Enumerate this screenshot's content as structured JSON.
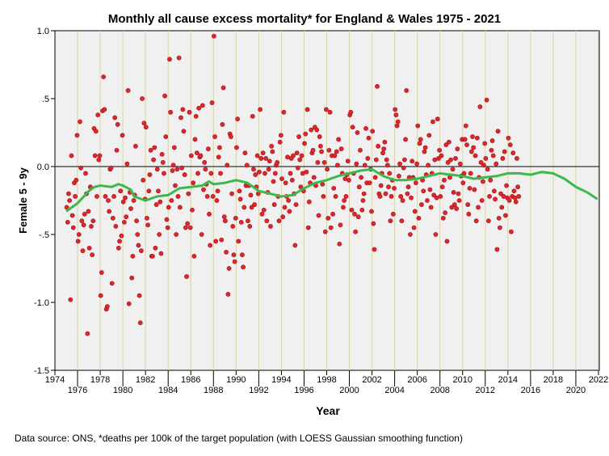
{
  "chart_data": {
    "type": "scatter",
    "title": "Monthly all cause excess mortality* for England & Wales 1975 - 2021",
    "xlabel": "Year",
    "ylabel": "Female 5 - 9y",
    "footnote": "Data source: ONS, *deaths per 100k of the target population (with LOESS Gaussian smoothing function)",
    "xlim": [
      1974,
      2022.2
    ],
    "ylim": [
      -1.5,
      1.0
    ],
    "x_ticks_top": [
      "1974",
      "1978",
      "1982",
      "1986",
      "1990",
      "1994",
      "1998",
      "2002",
      "2006",
      "2010",
      "2014",
      "2018",
      "2022"
    ],
    "x_ticks_bottom": [
      "1976",
      "1980",
      "1984",
      "1988",
      "1992",
      "1996",
      "2000",
      "2004",
      "2008",
      "2012",
      "2016",
      "2020"
    ],
    "y_ticks": [
      {
        "v": 1.0,
        "label": "1.0"
      },
      {
        "v": 0.5,
        "label": ".5"
      },
      {
        "v": 0,
        "label": "0.0"
      },
      {
        "v": -0.5,
        "label": "-.5"
      },
      {
        "v": -1.0,
        "label": "-1.0"
      },
      {
        "v": -1.5,
        "label": "-1.5"
      }
    ],
    "grid": "vertical every 2 years",
    "reference_line": 0,
    "colors": {
      "points": "#e0262b",
      "loess": "#3cb94a",
      "grid": "#dcd3a8",
      "plot_bg": "#f0f0f0"
    },
    "points_start_year": 1975,
    "points_monthly": [
      -0.3,
      -0.41,
      -0.2,
      -0.25,
      -0.98,
      0.08,
      -0.36,
      -0.45,
      -0.12,
      -0.22,
      -0.1,
      0.23,
      -0.55,
      -0.5,
      0.33,
      -0.01,
      -0.4,
      -0.62,
      -0.43,
      -0.35,
      -0.05,
      -0.2,
      -1.23,
      -0.33,
      -0.6,
      -0.15,
      -0.44,
      -0.65,
      -0.4,
      0.28,
      0.08,
      0.26,
      -0.22,
      0.38,
      0.05,
      0.08,
      -0.95,
      -0.78,
      0.41,
      0.66,
      0.42,
      -0.22,
      -1.05,
      -1.03,
      -0.25,
      -0.33,
      -0.02,
      -0.01,
      -0.86,
      -0.38,
      -0.22,
      0.36,
      -0.44,
      0.12,
      0.31,
      -0.6,
      -0.55,
      -0.18,
      -0.51,
      0.23,
      -0.26,
      -0.41,
      -0.23,
      -0.37,
      0.02,
      0.56,
      -1.01,
      -0.19,
      -0.31,
      -0.82,
      -0.66,
      -0.25,
      -0.21,
      0.15,
      -0.4,
      -0.5,
      -0.58,
      -0.95,
      -1.15,
      -0.62,
      0.5,
      -0.1,
      0.32,
      -0.24,
      0.29,
      -0.38,
      -0.43,
      -0.18,
      -0.06,
      0.12,
      -0.66,
      -0.66,
      0.05,
      0.14,
      -0.6,
      -0.28,
      -0.02,
      -0.18,
      -0.5,
      -0.26,
      -0.64,
      0.09,
      0.03,
      -0.05,
      0.52,
      0.22,
      -0.39,
      -0.45,
      -0.3,
      0.79,
      0.4,
      -0.25,
      -0.03,
      0.01,
      0.14,
      -0.14,
      -0.5,
      -0.02,
      -0.22,
      0.8,
      -0.3,
      0.36,
      -0.01,
      0.42,
      0.26,
      -0.06,
      -0.45,
      -0.81,
      -0.42,
      -0.2,
      0.4,
      -0.45,
      0.08,
      -0.32,
      -0.12,
      -0.66,
      0.2,
      0.37,
      0.1,
      -0.05,
      0.43,
      0.07,
      0.08,
      -0.5,
      0.45,
      -0.17,
      0.03,
      -0.02,
      -0.13,
      -0.22,
      0.13,
      -0.35,
      -0.58,
      -0.05,
      0.47,
      -0.22,
      0.96,
      0.22,
      -0.55,
      -0.25,
      -0.18,
      0.07,
      0.14,
      -0.05,
      -0.54,
      0.31,
      0.58,
      -0.37,
      -0.4,
      -0.63,
      0.01,
      -0.94,
      -0.75,
      0.24,
      0.22,
      -0.2,
      -0.44,
      -0.65,
      -0.7,
      -0.38,
      0.14,
      0.35,
      -0.55,
      -0.18,
      -0.24,
      -0.41,
      -0.65,
      -0.74,
      -0.3,
      0.1,
      -0.14,
      0.01,
      -0.4,
      -0.14,
      -0.44,
      -0.21,
      -0.3,
      0.37,
      -0.02,
      -0.28,
      -0.06,
      -0.15,
      0.08,
      -0.2,
      -0.04,
      0.42,
      0.06,
      -0.35,
      0.1,
      -0.32,
      -0.05,
      0.06,
      -0.4,
      -0.19,
      -0.02,
      0.04,
      -0.44,
      0.15,
      0.11,
      -0.11,
      -0.28,
      -0.05,
      0.01,
      0.03,
      -0.22,
      -0.4,
      0.18,
      0.23,
      -0.09,
      -0.37,
      0.4,
      -0.3,
      -0.12,
      -0.22,
      0.07,
      -0.25,
      -0.33,
      -0.05,
      0.06,
      -0.1,
      0.08,
      -0.2,
      -0.58,
      -0.28,
      0.1,
      -0.01,
      0.22,
      0.05,
      -0.15,
      0.08,
      -0.05,
      -0.18,
      0.17,
      0.24,
      -0.04,
      0.42,
      -0.45,
      -0.26,
      -0.12,
      0.27,
      0.1,
      0.12,
      -0.08,
      0.29,
      -0.14,
      0.27,
      0.03,
      -0.36,
      0.22,
      0.15,
      0.11,
      -0.13,
      -0.22,
      0.03,
      -0.48,
      0.42,
      -0.02,
      -0.38,
      0.12,
      0.4,
      -0.45,
      0.08,
      -0.35,
      -0.16,
      0.08,
      -0.22,
      0.11,
      0.01,
      0.2,
      -0.57,
      -0.43,
      0.13,
      -0.05,
      -0.3,
      -0.25,
      -0.09,
      -0.22,
      -0.06,
      0.04,
      -0.1,
      0.38,
      0.4,
      -0.32,
      0.29,
      -0.05,
      -0.35,
      -0.48,
      0.02,
      0.25,
      -0.37,
      -0.15,
      0.12,
      -0.08,
      -0.32,
      -0.25,
      -0.2,
      0.01,
      0.28,
      -0.12,
      0.06,
      0.21,
      -0.12,
      -0.02,
      -0.33,
      0.26,
      -0.42,
      -0.61,
      -0.08,
      0.05,
      0.59,
      0.15,
      -0.2,
      -0.22,
      -0.14,
      -0.05,
      0.1,
      0.13,
      0.18,
      -0.2,
      0.05,
      0.01,
      -0.15,
      -0.05,
      -0.4,
      -0.22,
      -0.1,
      -0.35,
      -0.16,
      0.42,
      0.38,
      0.3,
      0.33,
      -0.07,
      0.02,
      -0.22,
      -0.4,
      -0.25,
      -0.01,
      0.05,
      0.2,
      0.56,
      -0.2,
      -0.15,
      -0.08,
      -0.5,
      -0.23,
      0.04,
      -0.08,
      -0.45,
      -0.33,
      -0.12,
      0.02,
      0.3,
      -0.38,
      0.17,
      0.2,
      -0.28,
      -0.1,
      -0.18,
      0.11,
      0.14,
      -0.06,
      -0.25,
      0.01,
      0.23,
      -0.17,
      -0.3,
      -0.05,
      0.33,
      -0.21,
      0.05,
      -0.5,
      -0.23,
      0.35,
      0.06,
      0.12,
      -0.22,
      0.08,
      -0.15,
      -0.38,
      -0.1,
      -0.34,
      0.16,
      -0.55,
      0.03,
      0.18,
      -0.08,
      0.05,
      -0.3,
      -0.02,
      -0.19,
      -0.28,
      0.06,
      -0.31,
      0.13,
      -0.2,
      -0.25,
      0.02,
      -0.07,
      0.2,
      -0.12,
      -0.05,
      0.2,
      0.3,
      0.16,
      -0.28,
      -0.35,
      -0.16,
      -0.05,
      0.11,
      0.22,
      0.14,
      -0.17,
      0.08,
      -0.4,
      0.21,
      -0.3,
      -0.08,
      0.44,
      0.03,
      -0.25,
      -0.11,
      0.01,
      0.17,
      0.06,
      0.49,
      -0.02,
      -0.4,
      -0.22,
      -0.1,
      0.12,
      0.19,
      0.08,
      -0.18,
      -0.24,
      0.02,
      -0.61,
      0.26,
      -0.38,
      -0.45,
      -0.2,
      -0.3,
      0.06,
      -0.22,
      0.11,
      -0.36,
      -0.14,
      -0.23,
      0.21,
      -0.25,
      0.16,
      -0.48,
      -0.22,
      0.1,
      -0.18,
      -0.23,
      -0.26,
      0.06,
      -0.15,
      -0.22
    ],
    "loess": {
      "x": [
        1975,
        1976,
        1977,
        1977.5,
        1978,
        1979,
        1979.6,
        1980,
        1980.7,
        1981,
        1982,
        1983,
        1984,
        1985,
        1986,
        1987,
        1987.6,
        1988,
        1989,
        1990,
        1991,
        1992,
        1993,
        1994,
        1995,
        1996,
        1997,
        1998,
        1999,
        2000,
        2001,
        2002,
        2003,
        2004,
        2005,
        2006,
        2007,
        2008,
        2009,
        2010,
        2011,
        2012,
        2013,
        2014,
        2015,
        2016,
        2017,
        2018,
        2019,
        2020,
        2021,
        2021.9
      ],
      "y": [
        -0.33,
        -0.27,
        -0.18,
        -0.15,
        -0.14,
        -0.15,
        -0.13,
        -0.14,
        -0.17,
        -0.22,
        -0.25,
        -0.22,
        -0.21,
        -0.16,
        -0.15,
        -0.14,
        -0.11,
        -0.13,
        -0.12,
        -0.1,
        -0.12,
        -0.18,
        -0.2,
        -0.22,
        -0.21,
        -0.16,
        -0.12,
        -0.1,
        -0.07,
        -0.05,
        -0.03,
        -0.02,
        -0.07,
        -0.1,
        -0.1,
        -0.09,
        -0.07,
        -0.05,
        -0.06,
        -0.07,
        -0.09,
        -0.08,
        -0.07,
        -0.05,
        -0.05,
        -0.06,
        -0.04,
        -0.05,
        -0.09,
        -0.15,
        -0.19,
        -0.24
      ]
    }
  }
}
